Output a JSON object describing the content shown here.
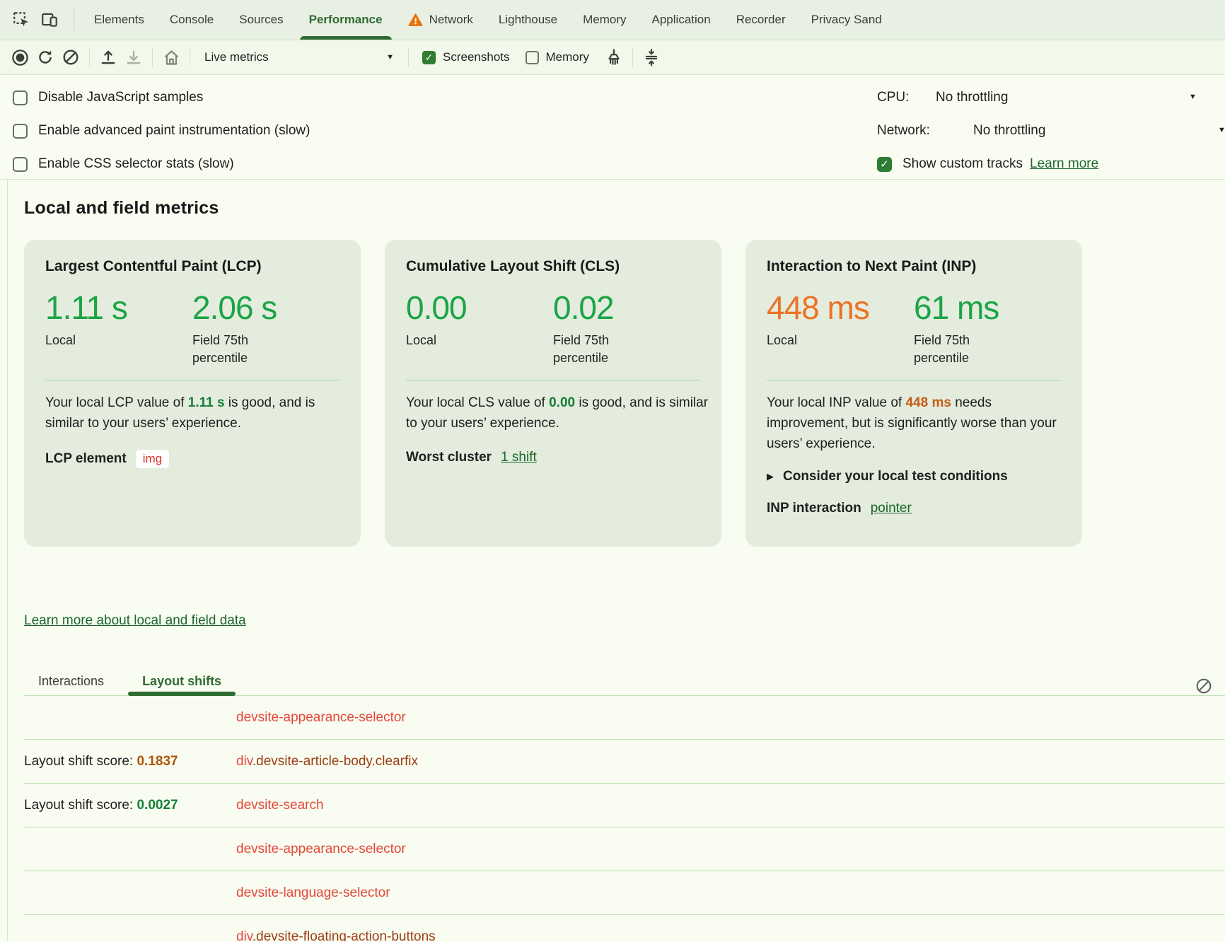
{
  "colors": {
    "accent_green": "#2f6b33",
    "good_green": "#1ba446",
    "warn_orange": "#ed7225",
    "inline_good_green": "#197d36",
    "inline_warn_orange": "#c75b14",
    "link_green": "#1a682c",
    "node_red": "#e4473a",
    "node_brown": "#9a3d12",
    "score_orange": "#b1540a",
    "score_green": "#17803a",
    "chip_red": "#d93025",
    "checkbox_green": "#2e7d32",
    "warning_orange": "#e8710a"
  },
  "tab_bar": {
    "tabs": [
      {
        "label": "Elements",
        "active": false,
        "warning": false
      },
      {
        "label": "Console",
        "active": false,
        "warning": false
      },
      {
        "label": "Sources",
        "active": false,
        "warning": false
      },
      {
        "label": "Performance",
        "active": true,
        "warning": false
      },
      {
        "label": "Network",
        "active": false,
        "warning": true
      },
      {
        "label": "Lighthouse",
        "active": false,
        "warning": false
      },
      {
        "label": "Memory",
        "active": false,
        "warning": false
      },
      {
        "label": "Application",
        "active": false,
        "warning": false
      },
      {
        "label": "Recorder",
        "active": false,
        "warning": false
      },
      {
        "label": "Privacy Sand",
        "active": false,
        "warning": false
      }
    ]
  },
  "toolbar": {
    "mode_label": "Live metrics",
    "screenshots_label": "Screenshots",
    "screenshots_checked": true,
    "memory_label": "Memory",
    "memory_checked": false
  },
  "options": {
    "checkboxes": [
      {
        "label": "Disable JavaScript samples",
        "checked": false
      },
      {
        "label": "Enable advanced paint instrumentation (slow)",
        "checked": false
      },
      {
        "label": "Enable CSS selector stats (slow)",
        "checked": false
      }
    ],
    "cpu_label": "CPU:",
    "cpu_value": "No throttling",
    "network_label": "Network:",
    "network_value": "No throttling",
    "custom_tracks_label": "Show custom tracks",
    "custom_tracks_checked": true,
    "custom_tracks_link": "Learn more"
  },
  "metrics_section": {
    "heading": "Local and field metrics",
    "local_label": "Local",
    "field_label": "Field 75th percentile",
    "learn_link": "Learn more about local and field data",
    "cards": {
      "lcp": {
        "title": "Largest Contentful Paint (LCP)",
        "local_value": "1.11 s",
        "field_value": "2.06 s",
        "desc_before": "Your local LCP value of ",
        "desc_value": "1.11 s",
        "desc_after": " is good, and is similar to your users’ experience.",
        "footer_label": "LCP element",
        "chip": "img"
      },
      "cls": {
        "title": "Cumulative Layout Shift (CLS)",
        "local_value": "0.00",
        "field_value": "0.02",
        "desc_before": "Your local CLS value of ",
        "desc_value": "0.00",
        "desc_after": " is good, and is similar to your users’ experience.",
        "footer_label": "Worst cluster",
        "link": "1 shift"
      },
      "inp": {
        "title": "Interaction to Next Paint (INP)",
        "local_value": "448 ms",
        "field_value": "61 ms",
        "desc_before": "Your local INP value of ",
        "desc_value": "448 ms",
        "desc_after": " needs improvement, but is significantly worse than your users’ experience.",
        "expander_label": "Consider your local test conditions",
        "footer_label": "INP interaction",
        "link": "pointer"
      }
    }
  },
  "shifts_panel": {
    "tabs": [
      {
        "label": "Interactions",
        "active": false
      },
      {
        "label": "Layout shifts",
        "active": true
      }
    ],
    "score_prefix": "Layout shift score: ",
    "rows": [
      {
        "score_value": "",
        "score_class": "",
        "element_parts": [
          {
            "text": "devsite-appearance-selector",
            "color": "red"
          }
        ]
      },
      {
        "score_value": "0.1837",
        "score_class": "orange",
        "element_parts": [
          {
            "text": "div",
            "color": "red"
          },
          {
            "text": ".devsite-article-body.clearfix",
            "color": "brown"
          }
        ]
      },
      {
        "score_value": "0.0027",
        "score_class": "green",
        "element_parts": [
          {
            "text": "devsite-search",
            "color": "red"
          }
        ]
      },
      {
        "score_value": "",
        "score_class": "",
        "element_parts": [
          {
            "text": "devsite-appearance-selector",
            "color": "red"
          }
        ]
      },
      {
        "score_value": "",
        "score_class": "",
        "element_parts": [
          {
            "text": "devsite-language-selector",
            "color": "red"
          }
        ]
      },
      {
        "score_value": "",
        "score_class": "",
        "element_parts": [
          {
            "text": "div",
            "color": "red"
          },
          {
            "text": ".devsite-floating-action-buttons",
            "color": "brown"
          }
        ]
      }
    ]
  }
}
